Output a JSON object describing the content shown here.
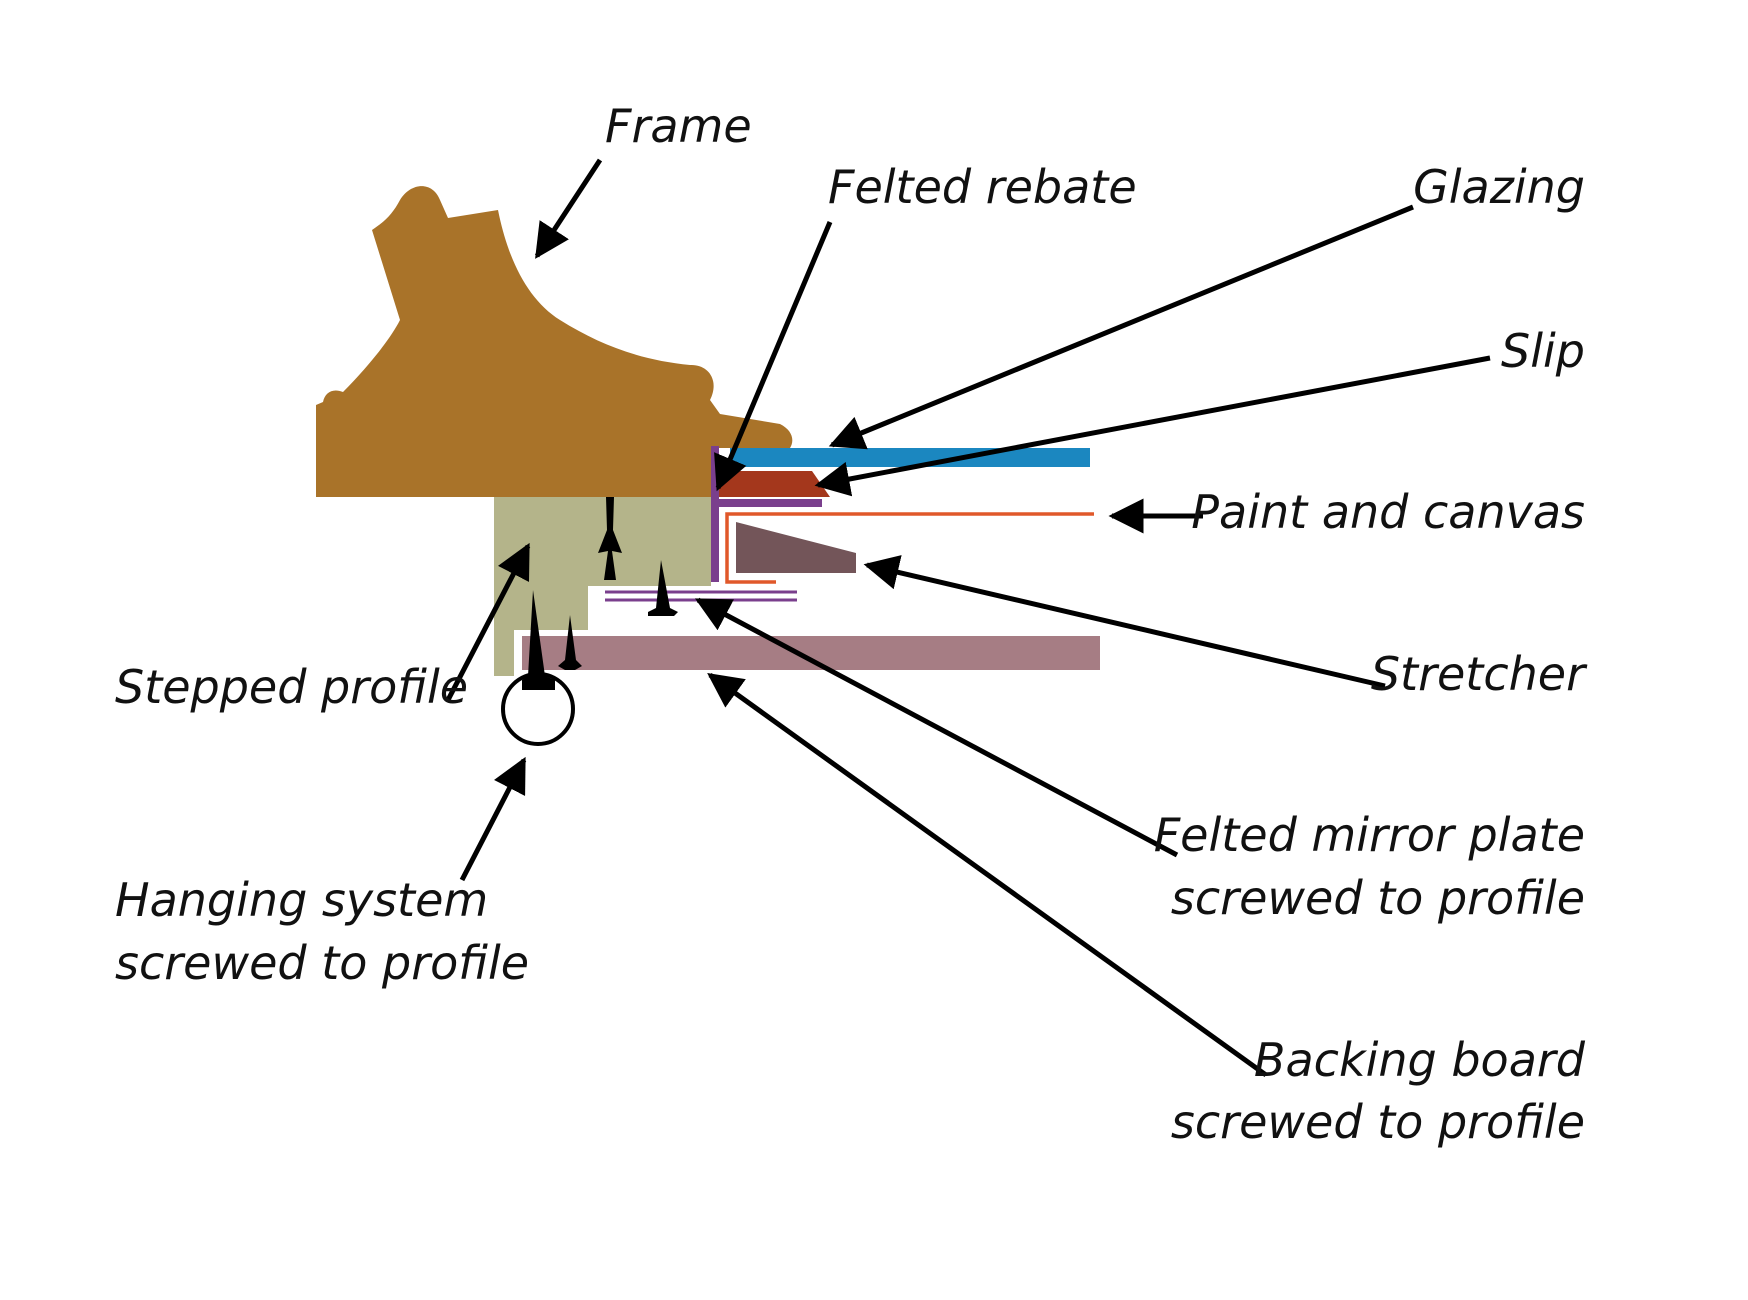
{
  "labels": {
    "frame": "Frame",
    "felted_rebate": "Felted rebate",
    "glazing": "Glazing",
    "slip": "Slip",
    "paint_and_canvas": "Paint and canvas",
    "stretcher": "Stretcher",
    "stepped_profile": "Stepped profile",
    "felted_mirror_plate_line1": "Felted mirror plate",
    "felted_mirror_plate_line2": "screwed to profile",
    "hanging_system_line1": "Hanging system",
    "hanging_system_line2": "screwed to profile",
    "backing_board_line1": "Backing board",
    "backing_board_line2": "screwed to profile"
  },
  "colors": {
    "frame": "#a97329",
    "stepped_profile": "#b4b48a",
    "glazing": "#1b87c0",
    "slip": "#a4371c",
    "felt": "#7a3f8d",
    "paint_canvas": "#e0582a",
    "stretcher": "#735559",
    "backing_board": "#a67d84"
  }
}
